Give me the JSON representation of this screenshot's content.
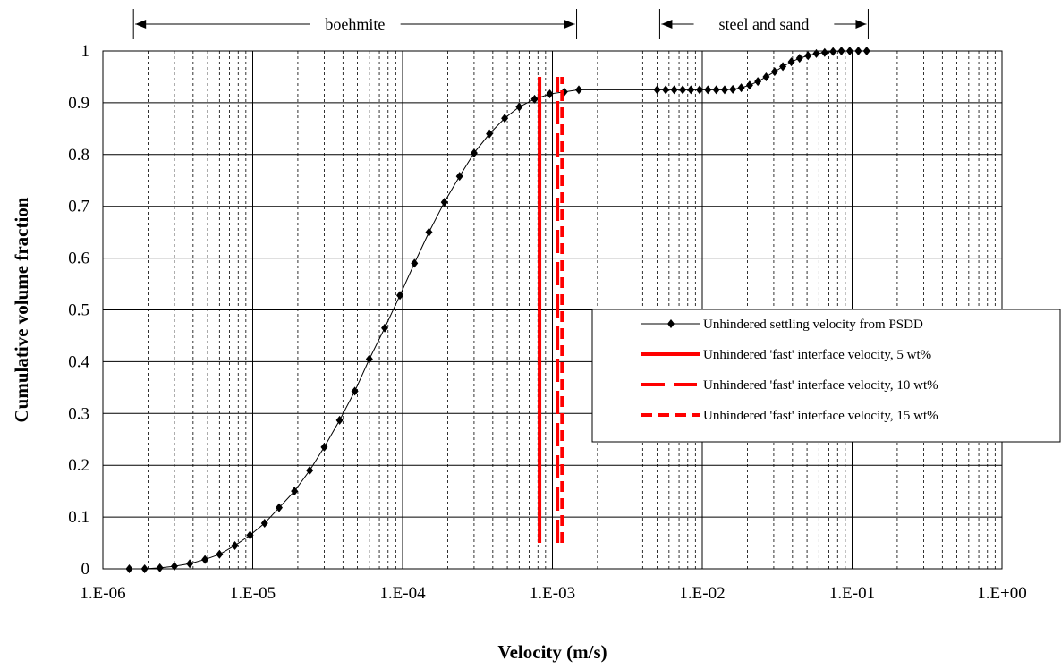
{
  "chart_data": {
    "type": "scatter",
    "xlabel": "Velocity (m/s)",
    "ylabel": "Cumulative volume fraction",
    "x_scale": "log",
    "xlim": [
      1e-06,
      1
    ],
    "ylim": [
      0,
      1
    ],
    "x_ticks": [
      "1.E-06",
      "1.E-05",
      "1.E-04",
      "1.E-03",
      "1.E-02",
      "1.E-01",
      "1.E+00"
    ],
    "y_ticks": [
      "0",
      "0.1",
      "0.2",
      "0.3",
      "0.4",
      "0.5",
      "0.6",
      "0.7",
      "0.8",
      "0.9",
      "1"
    ],
    "grid": true,
    "legend_position": "right",
    "annotations": [
      {
        "text": "boehmite",
        "x_range": [
          1.6e-06,
          0.00145
        ]
      },
      {
        "text": "steel and sand",
        "x_range": [
          0.0052,
          0.128
        ]
      }
    ],
    "series": [
      {
        "name": "Unhindered settling velocity from PSDD",
        "color": "#000000",
        "marker": "diamond",
        "x": [
          1.5e-06,
          1.9e-06,
          2.4e-06,
          3e-06,
          3.8e-06,
          4.8e-06,
          6e-06,
          7.6e-06,
          9.6e-06,
          1.2e-05,
          1.5e-05,
          1.9e-05,
          2.4e-05,
          3e-05,
          3.8e-05,
          4.8e-05,
          6e-05,
          7.6e-05,
          9.6e-05,
          0.00012,
          0.00015,
          0.00019,
          0.00024,
          0.0003,
          0.00038,
          0.00048,
          0.0006,
          0.00076,
          0.00096,
          0.0012,
          0.0015,
          0.005,
          0.0057,
          0.0065,
          0.0074,
          0.0084,
          0.0096,
          0.0109,
          0.0124,
          0.0141,
          0.016,
          0.0182,
          0.0207,
          0.0235,
          0.0267,
          0.0304,
          0.0345,
          0.0393,
          0.0446,
          0.0508,
          0.0577,
          0.0656,
          0.0746,
          0.0848,
          0.0964,
          0.11,
          0.125
        ],
        "y": [
          0.0,
          0.0,
          0.002,
          0.005,
          0.01,
          0.018,
          0.028,
          0.045,
          0.065,
          0.088,
          0.118,
          0.15,
          0.19,
          0.235,
          0.287,
          0.343,
          0.405,
          0.465,
          0.528,
          0.59,
          0.65,
          0.708,
          0.758,
          0.803,
          0.84,
          0.87,
          0.892,
          0.907,
          0.917,
          0.921,
          0.925,
          0.925,
          0.925,
          0.925,
          0.925,
          0.925,
          0.925,
          0.925,
          0.925,
          0.925,
          0.926,
          0.929,
          0.934,
          0.941,
          0.95,
          0.96,
          0.97,
          0.979,
          0.986,
          0.991,
          0.995,
          0.997,
          0.999,
          1.0,
          1.0,
          1.0,
          1.0
        ]
      },
      {
        "name": "Unhindered 'fast' interface velocity, 5 wt%",
        "color": "#ff0000",
        "style": "solid",
        "x": [
          0.00082,
          0.00082
        ],
        "y": [
          0.05,
          0.95
        ]
      },
      {
        "name": "Unhindered 'fast' interface velocity, 10 wt%",
        "color": "#ff0000",
        "style": "dashed",
        "x": [
          0.00108,
          0.00108
        ],
        "y": [
          0.05,
          0.95
        ]
      },
      {
        "name": "Unhindered 'fast' interface velocity, 15 wt%",
        "color": "#ff0000",
        "style": "dotted",
        "x": [
          0.00116,
          0.00116
        ],
        "y": [
          0.05,
          0.95
        ]
      }
    ]
  }
}
